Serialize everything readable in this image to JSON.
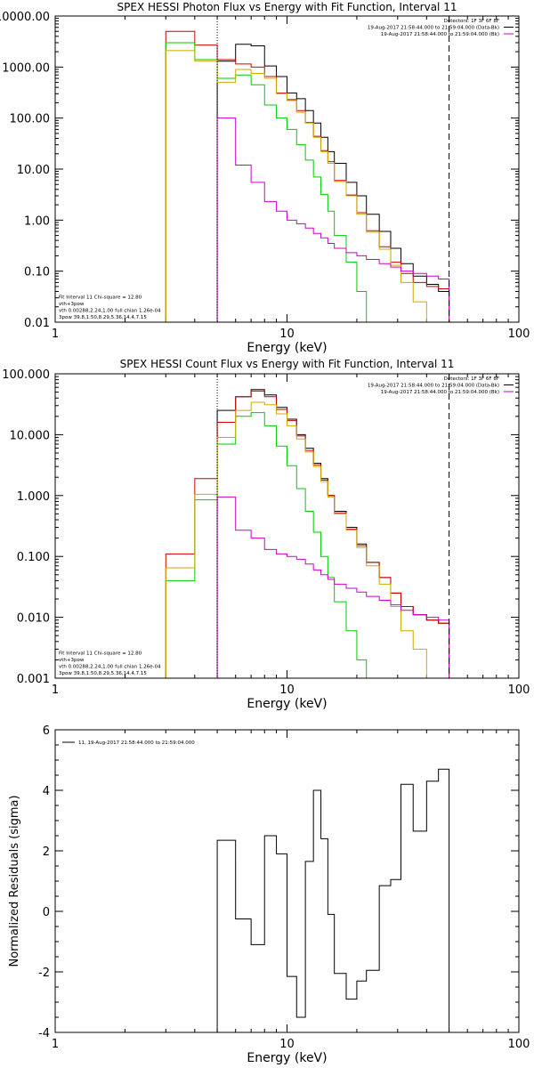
{
  "chart_data": [
    {
      "type": "line",
      "title": "SPEX HESSI Photon Flux vs Energy with Fit Function, Interval 11",
      "xlabel": "Energy (keV)",
      "ylabel": "",
      "xscale": "log",
      "yscale": "log",
      "xlim": [
        1,
        100
      ],
      "ylim": [
        0.01,
        10000
      ],
      "x_ticks": [
        {
          "value": 1,
          "label": "1"
        },
        {
          "value": 10,
          "label": "10"
        },
        {
          "value": 100,
          "label": "100"
        }
      ],
      "y_ticks": [
        {
          "value": 10000,
          "label": "10000.00"
        },
        {
          "value": 1000,
          "label": "1000.00"
        },
        {
          "value": 100,
          "label": "100.00"
        },
        {
          "value": 10,
          "label": "10.00"
        },
        {
          "value": 1,
          "label": "1.00"
        },
        {
          "value": 0.1,
          "label": "0.10"
        },
        {
          "value": 0.01,
          "label": "0.01"
        }
      ],
      "vlines": [
        {
          "x": 5,
          "style": "dotted",
          "color": "#000000"
        },
        {
          "x": 50,
          "style": "dashed",
          "color": "#000000"
        }
      ],
      "legend_top": [
        {
          "text": "Detectors: 1F 3F 6F 8F",
          "color": "#000000"
        },
        {
          "text": "19-Aug-2017 21:58:44.000 to 21:59:04.000 (Data-Bk)",
          "color": "#000000"
        },
        {
          "text": "19-Aug-2017 21:58:44.000 to 21:59:04.000 (Bk)",
          "color": "#cc00cc"
        }
      ],
      "legend_bottom": [
        {
          "text": "Fit Interval 11    Chi-square = 12.80",
          "color": "#000000"
        },
        {
          "text": "vth+3pow",
          "color": "#cc0000"
        },
        {
          "text": "vth 0.00288,2.24,1.00  full chian 1.26e-04",
          "color": "#00cc00"
        },
        {
          "text": "3pow 39.8,1.50,8.29,5.36,14.4,7.15",
          "color": "#ccaa00"
        }
      ],
      "edges": [
        3,
        4,
        5,
        6,
        7,
        8,
        9,
        10,
        11,
        12,
        13,
        14,
        15,
        16,
        18,
        20,
        22,
        25,
        28,
        31,
        35,
        40,
        45,
        50
      ],
      "series": [
        {
          "color": "#000000",
          "start": 2,
          "values": [
            1300,
            2800,
            2600,
            1050,
            650,
            310,
            240,
            140,
            80,
            42,
            22,
            13,
            5.5,
            3.0,
            1.3,
            0.6,
            0.28,
            0.14,
            0.08,
            0.055,
            0.04
          ]
        },
        {
          "color": "#cc0000",
          "start": 0,
          "values": [
            5000,
            2700,
            1400,
            1150,
            1000,
            650,
            310,
            230,
            140,
            82,
            44,
            23,
            14,
            6.0,
            3.1,
            1.4,
            0.62,
            0.3,
            0.15,
            0.09,
            0.06,
            0.05,
            0.045
          ]
        },
        {
          "color": "#00cc00",
          "start": 0,
          "values": [
            3000,
            1400,
            600,
            700,
            450,
            180,
            100,
            60,
            30,
            15,
            7,
            3.2,
            1.5,
            0.5,
            0.15,
            0.04,
            0.01
          ]
        },
        {
          "color": "#ccaa00",
          "start": 0,
          "values": [
            2100,
            1300,
            500,
            900,
            750,
            600,
            300,
            220,
            130,
            80,
            42,
            22,
            13,
            5.7,
            3.0,
            1.3,
            0.58,
            0.27,
            0.13,
            0.06,
            0.025,
            0.01,
            0.005
          ]
        },
        {
          "color": "#cc00cc",
          "start": 2,
          "values": [
            100,
            12,
            5.5,
            2.3,
            1.5,
            1.0,
            0.85,
            0.7,
            0.55,
            0.45,
            0.35,
            0.28,
            0.23,
            0.2,
            0.17,
            0.14,
            0.12,
            0.1,
            0.09,
            0.08,
            0.07
          ]
        }
      ]
    },
    {
      "type": "line",
      "title": "SPEX HESSI Count Flux vs Energy with Fit Function, Interval 11",
      "xlabel": "Energy (keV)",
      "ylabel": "",
      "xscale": "log",
      "yscale": "log",
      "xlim": [
        1,
        100
      ],
      "ylim": [
        0.001,
        100
      ],
      "x_ticks": [
        {
          "value": 1,
          "label": "1"
        },
        {
          "value": 10,
          "label": "10"
        },
        {
          "value": 100,
          "label": "100"
        }
      ],
      "y_ticks": [
        {
          "value": 100,
          "label": "100.000"
        },
        {
          "value": 10,
          "label": "10.000"
        },
        {
          "value": 1,
          "label": "1.000"
        },
        {
          "value": 0.1,
          "label": "0.100"
        },
        {
          "value": 0.01,
          "label": "0.010"
        },
        {
          "value": 0.001,
          "label": "0.001"
        }
      ],
      "vlines": [
        {
          "x": 5,
          "style": "dotted",
          "color": "#000000"
        },
        {
          "x": 50,
          "style": "dashed",
          "color": "#000000"
        }
      ],
      "legend_top": [
        {
          "text": "Detectors: 1F 3F 6F 8F",
          "color": "#000000"
        },
        {
          "text": "19-Aug-2017 21:58:44.000 to 21:59:04.000 (Data-Bk)",
          "color": "#000000"
        },
        {
          "text": "19-Aug-2017 21:58:44.000 to 21:59:04.000 (Bk)",
          "color": "#cc00cc"
        }
      ],
      "legend_bottom": [
        {
          "text": "Fit Interval 11    Chi-square = 12.80",
          "color": "#000000"
        },
        {
          "text": "vth+3pow",
          "color": "#cc0000"
        },
        {
          "text": "vth 0.00288,2.24,1.00  full chian 1.26e-04",
          "color": "#00cc00"
        },
        {
          "text": "3pow 39.8,1.50,8.29,5.36,14.4,7.15",
          "color": "#ccaa00"
        }
      ],
      "edges": [
        3,
        4,
        5,
        6,
        7,
        8,
        9,
        10,
        11,
        12,
        13,
        14,
        15,
        16,
        18,
        20,
        22,
        25,
        28,
        31,
        35,
        40,
        45,
        50
      ],
      "series": [
        {
          "color": "#000000",
          "start": 2,
          "values": [
            25,
            42,
            55,
            45,
            28,
            18,
            10,
            6,
            3.4,
            1.9,
            1.0,
            0.55,
            0.3,
            0.16,
            0.08,
            0.045,
            0.025,
            0.015,
            0.011,
            0.009,
            0.008
          ]
        },
        {
          "color": "#cc0000",
          "start": 0,
          "values": [
            0.11,
            1.9,
            16,
            42,
            52,
            42,
            26,
            17,
            9.5,
            5.5,
            3.2,
            1.8,
            1.0,
            0.52,
            0.28,
            0.15,
            0.08,
            0.045,
            0.025,
            0.015,
            0.011,
            0.009,
            0.008
          ]
        },
        {
          "color": "#00cc00",
          "start": 0,
          "values": [
            0.04,
            0.85,
            7,
            20,
            23,
            14,
            6.5,
            3.1,
            1.3,
            0.55,
            0.25,
            0.1,
            0.045,
            0.018,
            0.006,
            0.002,
            0.0007
          ]
        },
        {
          "color": "#ccaa00",
          "start": 0,
          "values": [
            0.065,
            1.05,
            9,
            25,
            34,
            31,
            22,
            14,
            8.5,
            5.2,
            3.0,
            1.7,
            0.95,
            0.5,
            0.27,
            0.14,
            0.07,
            0.035,
            0.015,
            0.006,
            0.003,
            0.001,
            0.0005
          ]
        },
        {
          "color": "#cc00cc",
          "start": 2,
          "values": [
            0.95,
            0.27,
            0.2,
            0.13,
            0.11,
            0.1,
            0.09,
            0.075,
            0.06,
            0.05,
            0.042,
            0.035,
            0.03,
            0.026,
            0.022,
            0.019,
            0.016,
            0.013,
            0.011,
            0.01,
            0.009
          ]
        }
      ]
    },
    {
      "type": "line",
      "title": "",
      "xlabel": "Energy (keV)",
      "ylabel": "Normalized Residuals (sigma)",
      "xscale": "log",
      "yscale": "linear",
      "xlim": [
        1,
        100
      ],
      "ylim": [
        -4,
        6
      ],
      "x_ticks": [
        {
          "value": 1,
          "label": "1"
        },
        {
          "value": 10,
          "label": "10"
        },
        {
          "value": 100,
          "label": "100"
        }
      ],
      "y_ticks": [
        {
          "value": -4,
          "label": "-4"
        },
        {
          "value": -2,
          "label": "-2"
        },
        {
          "value": 0,
          "label": "0"
        },
        {
          "value": 2,
          "label": "2"
        },
        {
          "value": 4,
          "label": "4"
        },
        {
          "value": 6,
          "label": "6"
        }
      ],
      "vlines": [],
      "legend_top": [],
      "legend_bottom": [],
      "legend_line": {
        "text": "11, 19-Aug-2017 21:58:44.000 to 21:59:04.000",
        "color": "#000000"
      },
      "edges": [
        5,
        6,
        7,
        8,
        9,
        10,
        11,
        12,
        13,
        14,
        15,
        16,
        18,
        20,
        22,
        25,
        28,
        31,
        35,
        40,
        45,
        50
      ],
      "series": [
        {
          "color": "#000000",
          "start": 0,
          "values": [
            2.35,
            -0.25,
            -1.1,
            2.5,
            1.9,
            -2.15,
            -3.5,
            1.65,
            4.0,
            2.4,
            -0.1,
            -2.05,
            -2.9,
            -2.3,
            -1.95,
            0.85,
            1.05,
            4.2,
            2.65,
            4.3,
            4.7
          ]
        }
      ]
    }
  ]
}
